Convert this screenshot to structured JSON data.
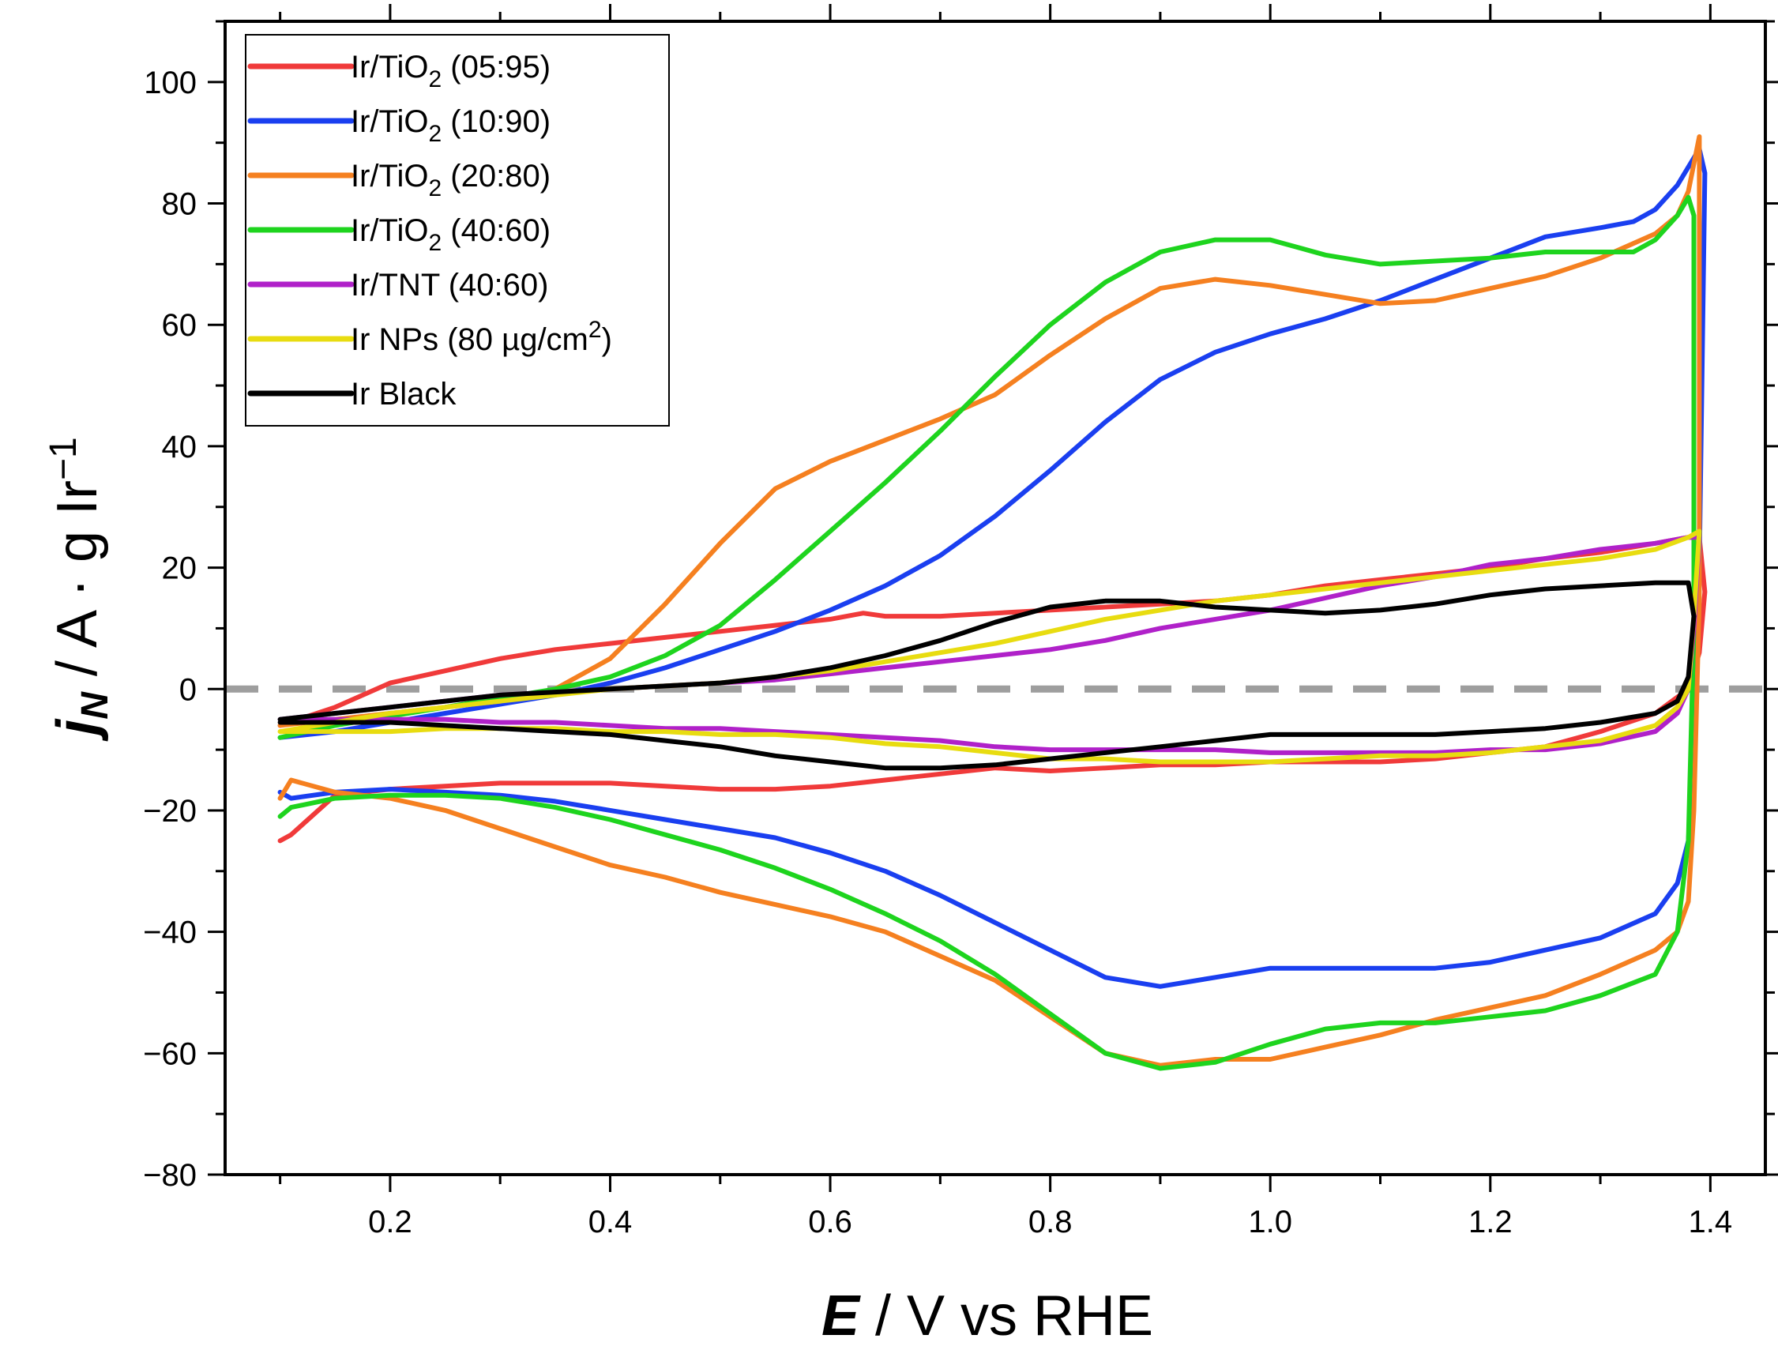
{
  "chart_data": {
    "type": "line",
    "title": "",
    "xlabel_var": "E",
    "xlabel_rest": " / V vs RHE",
    "ylabel_var": "j",
    "ylabel_sub": "N",
    "ylabel_rest": " / A · g Ir",
    "ylabel_sup": "−1",
    "xlim": [
      0.05,
      1.45
    ],
    "ylim": [
      -80,
      110
    ],
    "xticks": [
      0.2,
      0.4,
      0.6,
      0.8,
      1.0,
      1.2,
      1.4
    ],
    "xtick_labels": [
      "0.2",
      "0.4",
      "0.6",
      "0.8",
      "1.0",
      "1.2",
      "1.4"
    ],
    "yticks": [
      -80,
      -60,
      -40,
      -20,
      0,
      20,
      40,
      60,
      80,
      100
    ],
    "ytick_labels": [
      "−80",
      "−60",
      "−40",
      "−20",
      "0",
      "20",
      "40",
      "60",
      "80",
      "100"
    ],
    "zero_line": {
      "y": 0,
      "style": "dashed",
      "color": "#9e9e9e"
    },
    "legend_position": "top-left",
    "series": [
      {
        "name": "Ir/TiO2 (05:95)",
        "label_main": "Ir/TiO",
        "label_sub": "2",
        "label_tail": " (05:95)",
        "color": "#f03a3a",
        "x": [
          0.1,
          0.15,
          0.2,
          0.25,
          0.3,
          0.35,
          0.4,
          0.45,
          0.5,
          0.55,
          0.6,
          0.63,
          0.65,
          0.7,
          0.75,
          0.8,
          0.85,
          0.9,
          0.95,
          1.0,
          1.05,
          1.1,
          1.15,
          1.2,
          1.25,
          1.3,
          1.35,
          1.38,
          1.39,
          1.395,
          1.39,
          1.38,
          1.35,
          1.3,
          1.25,
          1.2,
          1.15,
          1.1,
          1.05,
          1.0,
          0.95,
          0.9,
          0.85,
          0.8,
          0.75,
          0.7,
          0.65,
          0.6,
          0.55,
          0.5,
          0.45,
          0.4,
          0.35,
          0.3,
          0.25,
          0.2,
          0.15,
          0.11,
          0.1
        ],
        "y": [
          -6,
          -3,
          1,
          3,
          5,
          6.5,
          7.5,
          8.5,
          9.5,
          10.5,
          11.5,
          12.5,
          12,
          12,
          12.5,
          13,
          13.5,
          14,
          14.5,
          15.5,
          17,
          18,
          19,
          20,
          21.5,
          22.5,
          24,
          25,
          25,
          16,
          6,
          0,
          -4,
          -7,
          -9.5,
          -10.5,
          -11.5,
          -12,
          -12,
          -12,
          -12.5,
          -12.5,
          -13,
          -13.5,
          -13,
          -14,
          -15,
          -16,
          -16.5,
          -16.5,
          -16,
          -15.5,
          -15.5,
          -15.5,
          -16,
          -16.5,
          -17.5,
          -24,
          -25
        ]
      },
      {
        "name": "Ir/TiO2 (10:90)",
        "label_main": "Ir/TiO",
        "label_sub": "2",
        "label_tail": " (10:90)",
        "color": "#1a3ff0",
        "x": [
          0.1,
          0.15,
          0.2,
          0.25,
          0.3,
          0.35,
          0.4,
          0.45,
          0.5,
          0.55,
          0.6,
          0.65,
          0.7,
          0.75,
          0.8,
          0.85,
          0.9,
          0.95,
          1.0,
          1.05,
          1.1,
          1.15,
          1.2,
          1.25,
          1.3,
          1.33,
          1.35,
          1.37,
          1.39,
          1.395,
          1.39,
          1.385,
          1.38,
          1.37,
          1.35,
          1.3,
          1.25,
          1.2,
          1.15,
          1.1,
          1.05,
          1.0,
          0.95,
          0.9,
          0.85,
          0.8,
          0.75,
          0.7,
          0.65,
          0.6,
          0.55,
          0.5,
          0.45,
          0.4,
          0.35,
          0.3,
          0.25,
          0.2,
          0.15,
          0.11,
          0.1
        ],
        "y": [
          -8,
          -7,
          -5.5,
          -4,
          -2.5,
          -1,
          1,
          3.5,
          6.5,
          9.5,
          13,
          17,
          22,
          28.5,
          36,
          44,
          51,
          55.5,
          58.5,
          61,
          64,
          67.5,
          71,
          74.5,
          76,
          77,
          79,
          83,
          89,
          85,
          20,
          -10,
          -25,
          -32,
          -37,
          -41,
          -43,
          -45,
          -46,
          -46,
          -46,
          -46,
          -47.5,
          -49,
          -47.5,
          -43,
          -38.5,
          -34,
          -30,
          -27,
          -24.5,
          -23,
          -21.5,
          -20,
          -18.5,
          -17.5,
          -17,
          -16.5,
          -17,
          -18,
          -17
        ]
      },
      {
        "name": "Ir/TiO2 (20:80)",
        "label_main": "Ir/TiO",
        "label_sub": "2",
        "label_tail": " (20:80)",
        "color": "#f58020",
        "x": [
          0.1,
          0.15,
          0.2,
          0.25,
          0.3,
          0.35,
          0.4,
          0.45,
          0.5,
          0.55,
          0.6,
          0.65,
          0.7,
          0.75,
          0.8,
          0.85,
          0.9,
          0.95,
          1.0,
          1.05,
          1.1,
          1.15,
          1.2,
          1.25,
          1.3,
          1.35,
          1.37,
          1.38,
          1.39,
          1.39,
          1.385,
          1.38,
          1.37,
          1.35,
          1.3,
          1.25,
          1.2,
          1.15,
          1.1,
          1.05,
          1.0,
          0.95,
          0.9,
          0.85,
          0.8,
          0.75,
          0.7,
          0.65,
          0.6,
          0.55,
          0.5,
          0.45,
          0.4,
          0.35,
          0.3,
          0.25,
          0.2,
          0.15,
          0.11,
          0.1
        ],
        "y": [
          -6,
          -5,
          -4,
          -3,
          -2,
          0,
          5,
          14,
          24,
          33,
          37.5,
          41,
          44.5,
          48.5,
          55,
          61,
          66,
          67.5,
          66.5,
          65,
          63.5,
          64,
          66,
          68,
          71,
          75,
          78,
          82,
          91,
          15,
          -20,
          -35,
          -40,
          -43,
          -47,
          -50.5,
          -52.5,
          -54.5,
          -57,
          -59,
          -61,
          -61,
          -62,
          -60,
          -54,
          -48,
          -44,
          -40,
          -37.5,
          -35.5,
          -33.5,
          -31,
          -29,
          -26,
          -23,
          -20,
          -18,
          -17,
          -15,
          -18
        ]
      },
      {
        "name": "Ir/TiO2 (40:60)",
        "label_main": "Ir/TiO",
        "label_sub": "2",
        "label_tail": " (40:60)",
        "color": "#1ed41e",
        "x": [
          0.1,
          0.15,
          0.2,
          0.25,
          0.3,
          0.35,
          0.4,
          0.45,
          0.5,
          0.55,
          0.6,
          0.65,
          0.7,
          0.75,
          0.8,
          0.85,
          0.9,
          0.95,
          1.0,
          1.05,
          1.1,
          1.15,
          1.2,
          1.25,
          1.3,
          1.33,
          1.35,
          1.37,
          1.38,
          1.385,
          1.385,
          1.38,
          1.37,
          1.35,
          1.3,
          1.25,
          1.2,
          1.15,
          1.1,
          1.05,
          1.0,
          0.95,
          0.9,
          0.85,
          0.8,
          0.75,
          0.7,
          0.65,
          0.6,
          0.55,
          0.5,
          0.45,
          0.4,
          0.35,
          0.3,
          0.25,
          0.2,
          0.15,
          0.11,
          0.1
        ],
        "y": [
          -8,
          -6,
          -4.5,
          -3,
          -1.5,
          0,
          2,
          5.5,
          10.5,
          18,
          26,
          34,
          42.5,
          51.5,
          60,
          67,
          72,
          74,
          74,
          71.5,
          70,
          70.5,
          71,
          72,
          72,
          72,
          74,
          78,
          81,
          78,
          10,
          -25,
          -40,
          -47,
          -50.5,
          -53,
          -54,
          -55,
          -55,
          -56,
          -58.5,
          -61.5,
          -62.5,
          -60,
          -53.5,
          -47,
          -41.5,
          -37,
          -33,
          -29.5,
          -26.5,
          -24,
          -21.5,
          -19.5,
          -18,
          -17.5,
          -17.5,
          -18,
          -19.5,
          -21
        ]
      },
      {
        "name": "Ir/TNT (40:60)",
        "label_main": "Ir/TNT (40:60)",
        "label_sub": "",
        "label_tail": "",
        "color": "#b021c9",
        "x": [
          0.1,
          0.15,
          0.2,
          0.25,
          0.3,
          0.35,
          0.4,
          0.45,
          0.5,
          0.55,
          0.6,
          0.65,
          0.7,
          0.75,
          0.8,
          0.85,
          0.9,
          0.95,
          1.0,
          1.05,
          1.1,
          1.15,
          1.2,
          1.25,
          1.3,
          1.35,
          1.38,
          1.39,
          1.385,
          1.38,
          1.37,
          1.35,
          1.3,
          1.25,
          1.2,
          1.15,
          1.1,
          1.05,
          1.0,
          0.95,
          0.9,
          0.85,
          0.8,
          0.75,
          0.7,
          0.65,
          0.6,
          0.55,
          0.5,
          0.45,
          0.4,
          0.35,
          0.3,
          0.25,
          0.2,
          0.15,
          0.11,
          0.1
        ],
        "y": [
          -5,
          -4,
          -3,
          -2,
          -1,
          -0.5,
          0,
          0.5,
          1,
          1.5,
          2.5,
          3.5,
          4.5,
          5.5,
          6.5,
          8,
          10,
          11.5,
          13,
          15,
          17,
          18.5,
          20.5,
          21.5,
          23,
          24,
          25,
          25,
          10,
          0,
          -4,
          -7,
          -9,
          -10,
          -10,
          -10.5,
          -10.5,
          -10.5,
          -10.5,
          -10,
          -10,
          -10,
          -10,
          -9.5,
          -8.5,
          -8,
          -7.5,
          -7,
          -6.5,
          -6.5,
          -6,
          -5.5,
          -5.5,
          -5,
          -5,
          -5,
          -5,
          -5
        ]
      },
      {
        "name": "Ir NPs (80 µg/cm2)",
        "label_main": "Ir NPs (80 µg/cm",
        "label_sup": "2",
        "label_tail": ")",
        "color": "#e8dc10",
        "x": [
          0.1,
          0.15,
          0.2,
          0.25,
          0.3,
          0.35,
          0.4,
          0.45,
          0.5,
          0.55,
          0.6,
          0.65,
          0.7,
          0.75,
          0.8,
          0.85,
          0.9,
          0.95,
          1.0,
          1.05,
          1.1,
          1.15,
          1.2,
          1.25,
          1.3,
          1.35,
          1.38,
          1.39,
          1.385,
          1.38,
          1.37,
          1.35,
          1.3,
          1.25,
          1.2,
          1.15,
          1.1,
          1.05,
          1.0,
          0.95,
          0.9,
          0.85,
          0.8,
          0.75,
          0.7,
          0.65,
          0.6,
          0.55,
          0.5,
          0.45,
          0.4,
          0.35,
          0.3,
          0.25,
          0.2,
          0.15,
          0.11,
          0.1
        ],
        "y": [
          -7,
          -5.5,
          -4,
          -3,
          -2,
          -1,
          0,
          0.5,
          1,
          2,
          3,
          4.5,
          6,
          7.5,
          9.5,
          11.5,
          13,
          14.5,
          15.5,
          16.5,
          17.5,
          18.5,
          19.5,
          20.5,
          21.5,
          23,
          25,
          26,
          12,
          0,
          -3,
          -6,
          -8.5,
          -9.5,
          -10.5,
          -11,
          -11,
          -11.5,
          -12,
          -12,
          -12,
          -11.5,
          -11.5,
          -10.5,
          -9.5,
          -9,
          -8,
          -7.5,
          -7.5,
          -7,
          -7,
          -6.5,
          -6.5,
          -6.5,
          -7,
          -7,
          -7,
          -7
        ]
      },
      {
        "name": "Ir Black",
        "label_main": "Ir Black",
        "label_sub": "",
        "label_tail": "",
        "color": "#000000",
        "x": [
          0.1,
          0.15,
          0.2,
          0.25,
          0.3,
          0.35,
          0.4,
          0.45,
          0.5,
          0.55,
          0.6,
          0.65,
          0.7,
          0.75,
          0.8,
          0.85,
          0.9,
          0.95,
          1.0,
          1.05,
          1.1,
          1.15,
          1.2,
          1.25,
          1.3,
          1.35,
          1.38,
          1.385,
          1.38,
          1.37,
          1.35,
          1.3,
          1.25,
          1.2,
          1.15,
          1.1,
          1.05,
          1.0,
          0.95,
          0.9,
          0.85,
          0.8,
          0.75,
          0.7,
          0.65,
          0.6,
          0.55,
          0.5,
          0.45,
          0.4,
          0.35,
          0.3,
          0.25,
          0.2,
          0.15,
          0.11,
          0.1
        ],
        "y": [
          -5,
          -4,
          -3,
          -2,
          -1,
          -0.5,
          0,
          0.5,
          1,
          2,
          3.5,
          5.5,
          8,
          11,
          13.5,
          14.5,
          14.5,
          13.5,
          13,
          12.5,
          13,
          14,
          15.5,
          16.5,
          17,
          17.5,
          17.5,
          12,
          2,
          -2,
          -4,
          -5.5,
          -6.5,
          -7,
          -7.5,
          -7.5,
          -7.5,
          -7.5,
          -8.5,
          -9.5,
          -10.5,
          -11.5,
          -12.5,
          -13,
          -13,
          -12,
          -11,
          -9.5,
          -8.5,
          -7.5,
          -7,
          -6.5,
          -6,
          -5.5,
          -5.5,
          -5.5,
          -5.5
        ]
      }
    ]
  }
}
